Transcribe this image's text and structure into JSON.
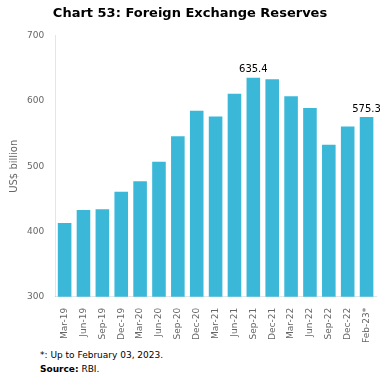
{
  "chart_data": {
    "type": "bar",
    "title": "Chart 53: Foreign Exchange Reserves",
    "categories": [
      "Mar-19",
      "Jun-19",
      "Sep-19",
      "Dec-19",
      "Mar-20",
      "Jun-20",
      "Sep-20",
      "Dec-20",
      "Mar-21",
      "Jun-21",
      "Sep-21",
      "Dec-21",
      "Mar-22",
      "Jun-22",
      "Sep-22",
      "Dec-22",
      "Feb-23*"
    ],
    "values": [
      413,
      433,
      434,
      461,
      477,
      507,
      546,
      585,
      576,
      611,
      635.4,
      633,
      607,
      589,
      533,
      561,
      575.3
    ],
    "color": "#3BB8D8",
    "ylabel": "US$ billion",
    "ylim": [
      300,
      700
    ],
    "yticks": [
      300,
      400,
      500,
      600,
      700
    ],
    "grid": false,
    "annotations": [
      {
        "x": "Sep-21",
        "y": 635.4,
        "text": "635.4"
      },
      {
        "x": "Feb-23*",
        "y": 575.3,
        "text": "575.3"
      }
    ],
    "footnotes": [
      {
        "text": "*: Up to February 03, 2023."
      },
      {
        "bold": "Source:",
        "text": " RBI."
      }
    ]
  }
}
